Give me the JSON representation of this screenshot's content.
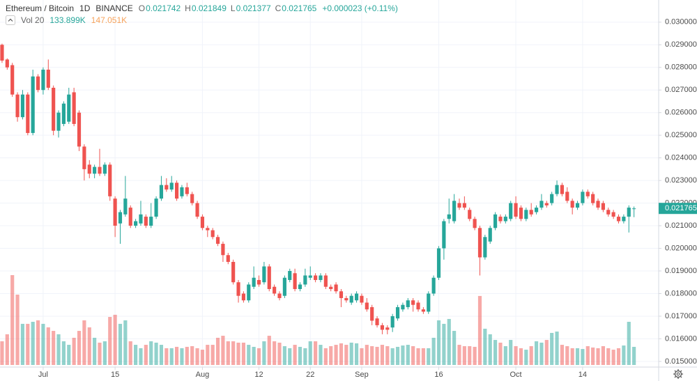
{
  "chart_data": {
    "type": "candlestick",
    "symbol": "Ethereum / Bitcoin",
    "interval": "1D",
    "exchange": "BINANCE",
    "ohlc_legend": [
      {
        "label": "O",
        "value": "0.021742"
      },
      {
        "label": "H",
        "value": "0.021849"
      },
      {
        "label": "L",
        "value": "0.021377"
      },
      {
        "label": "C",
        "value": "0.021765"
      }
    ],
    "change": "+0.000023 (+0.11%)",
    "volume": {
      "name": "Vol 20",
      "current": "133.899K",
      "ma": "147.051K",
      "values": [
        175,
        227,
        664,
        520,
        304,
        304,
        319,
        330,
        304,
        278,
        252,
        227,
        175,
        149,
        201,
        252,
        330,
        278,
        201,
        165,
        175,
        355,
        371,
        304,
        330,
        175,
        149,
        124,
        149,
        175,
        165,
        149,
        124,
        124,
        134,
        124,
        134,
        139,
        124,
        113,
        149,
        149,
        201,
        216,
        175,
        175,
        165,
        165,
        149,
        134,
        124,
        175,
        216,
        175,
        165,
        139,
        124,
        149,
        134,
        124,
        175,
        175,
        149,
        124,
        139,
        149,
        160,
        149,
        165,
        160,
        124,
        149,
        139,
        134,
        149,
        139,
        124,
        134,
        144,
        149,
        139,
        124,
        124,
        124,
        201,
        330,
        304,
        340,
        252,
        149,
        139,
        139,
        134,
        510,
        268,
        227,
        185,
        165,
        139,
        185,
        139,
        124,
        113,
        139,
        175,
        165,
        185,
        237,
        247,
        149,
        139,
        124,
        124,
        118,
        139,
        129,
        124,
        139,
        124,
        113,
        124,
        144,
        319,
        133.899
      ]
    },
    "up_color": "#26a69a",
    "down_color": "#ef5350",
    "candles": [
      [
        0.029,
        0.02905,
        0.0282,
        0.0283
      ],
      [
        0.02835,
        0.0284,
        0.0279,
        0.028
      ],
      [
        0.0281,
        0.0282,
        0.0267,
        0.0268
      ],
      [
        0.0268,
        0.0269,
        0.0256,
        0.0258
      ],
      [
        0.0258,
        0.027,
        0.0257,
        0.0268
      ],
      [
        0.0268,
        0.0269,
        0.025,
        0.0251
      ],
      [
        0.0251,
        0.0279,
        0.025,
        0.0276
      ],
      [
        0.0276,
        0.0277,
        0.0269,
        0.027
      ],
      [
        0.027,
        0.028,
        0.0268,
        0.0279
      ],
      [
        0.0279,
        0.02835,
        0.027,
        0.0271
      ],
      [
        0.0271,
        0.0272,
        0.025,
        0.0252
      ],
      [
        0.0252,
        0.0261,
        0.0249,
        0.026
      ],
      [
        0.0255,
        0.0265,
        0.0254,
        0.0264
      ],
      [
        0.0256,
        0.0271,
        0.0255,
        0.0268
      ],
      [
        0.0269,
        0.0271,
        0.0254,
        0.0255
      ],
      [
        0.026,
        0.0261,
        0.0243,
        0.0245
      ],
      [
        0.0245,
        0.0246,
        0.023,
        0.0235
      ],
      [
        0.0237,
        0.0239,
        0.0231,
        0.0233
      ],
      [
        0.0233,
        0.0237,
        0.0231,
        0.0236
      ],
      [
        0.0236,
        0.0244,
        0.0232,
        0.0233
      ],
      [
        0.0233,
        0.0238,
        0.0232,
        0.0237
      ],
      [
        0.0237,
        0.0238,
        0.0221,
        0.0223
      ],
      [
        0.0222,
        0.0223,
        0.0205,
        0.021
      ],
      [
        0.0211,
        0.0217,
        0.0202,
        0.0216
      ],
      [
        0.0215,
        0.0232,
        0.0214,
        0.0222
      ],
      [
        0.0218,
        0.0219,
        0.0209,
        0.021
      ],
      [
        0.021,
        0.0213,
        0.0209,
        0.0212
      ],
      [
        0.0211,
        0.0221,
        0.021,
        0.0215
      ],
      [
        0.0214,
        0.0215,
        0.0209,
        0.021
      ],
      [
        0.021,
        0.022,
        0.0209,
        0.0214
      ],
      [
        0.0214,
        0.0223,
        0.0213,
        0.0222
      ],
      [
        0.0222,
        0.0232,
        0.0221,
        0.0228
      ],
      [
        0.0228,
        0.0231,
        0.0225,
        0.0226
      ],
      [
        0.0226,
        0.0232,
        0.0225,
        0.0229
      ],
      [
        0.0229,
        0.023,
        0.0221,
        0.0222
      ],
      [
        0.0223,
        0.0228,
        0.0222,
        0.0227
      ],
      [
        0.0227,
        0.0229,
        0.0223,
        0.0224
      ],
      [
        0.0224,
        0.0225,
        0.0219,
        0.022
      ],
      [
        0.022,
        0.0221,
        0.0213,
        0.0214
      ],
      [
        0.0214,
        0.0215,
        0.0208,
        0.0209
      ],
      [
        0.0209,
        0.021,
        0.0205,
        0.0208
      ],
      [
        0.0208,
        0.0209,
        0.0204,
        0.0205
      ],
      [
        0.0205,
        0.0206,
        0.0201,
        0.0202
      ],
      [
        0.0202,
        0.0203,
        0.0194,
        0.0197
      ],
      [
        0.0197,
        0.0198,
        0.0193,
        0.0194
      ],
      [
        0.0194,
        0.0195,
        0.0184,
        0.0185
      ],
      [
        0.0185,
        0.0186,
        0.0176,
        0.0179
      ],
      [
        0.018,
        0.0181,
        0.0176,
        0.0177
      ],
      [
        0.0177,
        0.0185,
        0.0176,
        0.0184
      ],
      [
        0.0183,
        0.0192,
        0.0182,
        0.0187
      ],
      [
        0.0186,
        0.0188,
        0.0183,
        0.0184
      ],
      [
        0.0185,
        0.0194,
        0.0184,
        0.0192
      ],
      [
        0.0192,
        0.0193,
        0.0181,
        0.0182
      ],
      [
        0.0183,
        0.0184,
        0.0179,
        0.018
      ],
      [
        0.018,
        0.0181,
        0.0177,
        0.0178
      ],
      [
        0.0179,
        0.0188,
        0.0178,
        0.0187
      ],
      [
        0.0186,
        0.0191,
        0.0185,
        0.019
      ],
      [
        0.0189,
        0.0191,
        0.0181,
        0.0182
      ],
      [
        0.0182,
        0.0185,
        0.0181,
        0.0184
      ],
      [
        0.0184,
        0.0191,
        0.0183,
        0.0188
      ],
      [
        0.0187,
        0.0192,
        0.0186,
        0.0188
      ],
      [
        0.0188,
        0.0189,
        0.0185,
        0.0186
      ],
      [
        0.0186,
        0.0189,
        0.0185,
        0.0188
      ],
      [
        0.0188,
        0.0189,
        0.0182,
        0.0183
      ],
      [
        0.0183,
        0.0184,
        0.0181,
        0.0182
      ],
      [
        0.0184,
        0.0185,
        0.018,
        0.0181
      ],
      [
        0.0181,
        0.0182,
        0.0174,
        0.0178
      ],
      [
        0.0178,
        0.0179,
        0.0176,
        0.0177
      ],
      [
        0.0176,
        0.018,
        0.0175,
        0.0179
      ],
      [
        0.0177,
        0.0181,
        0.0176,
        0.018
      ],
      [
        0.0179,
        0.018,
        0.0175,
        0.0176
      ],
      [
        0.0176,
        0.0178,
        0.0172,
        0.0173
      ],
      [
        0.0174,
        0.0175,
        0.0166,
        0.0168
      ],
      [
        0.0169,
        0.017,
        0.0165,
        0.0166
      ],
      [
        0.0166,
        0.0167,
        0.0162,
        0.0164
      ],
      [
        0.0165,
        0.0166,
        0.0162,
        0.0164
      ],
      [
        0.0165,
        0.0171,
        0.0163,
        0.017
      ],
      [
        0.0169,
        0.0175,
        0.0168,
        0.0174
      ],
      [
        0.0173,
        0.0176,
        0.0172,
        0.0175
      ],
      [
        0.0174,
        0.0178,
        0.0173,
        0.0177
      ],
      [
        0.0177,
        0.0178,
        0.0172,
        0.0175
      ],
      [
        0.0176,
        0.0177,
        0.0172,
        0.0173
      ],
      [
        0.0173,
        0.0174,
        0.0171,
        0.0172
      ],
      [
        0.0172,
        0.0181,
        0.0171,
        0.018
      ],
      [
        0.018,
        0.0188,
        0.0179,
        0.0187
      ],
      [
        0.0187,
        0.0201,
        0.0186,
        0.02
      ],
      [
        0.02,
        0.0213,
        0.0195,
        0.0212
      ],
      [
        0.0213,
        0.0222,
        0.0211,
        0.0215
      ],
      [
        0.0212,
        0.0224,
        0.0211,
        0.0221
      ],
      [
        0.022,
        0.0222,
        0.0217,
        0.0218
      ],
      [
        0.022,
        0.0223,
        0.0217,
        0.0218
      ],
      [
        0.0217,
        0.0218,
        0.0212,
        0.0213
      ],
      [
        0.0213,
        0.0214,
        0.0208,
        0.0209
      ],
      [
        0.0209,
        0.021,
        0.0188,
        0.0196
      ],
      [
        0.0196,
        0.0206,
        0.0195,
        0.0205
      ],
      [
        0.0203,
        0.021,
        0.0202,
        0.0209
      ],
      [
        0.0209,
        0.0216,
        0.0208,
        0.0215
      ],
      [
        0.0214,
        0.0215,
        0.0211,
        0.0212
      ],
      [
        0.0212,
        0.0215,
        0.0211,
        0.0214
      ],
      [
        0.0213,
        0.0221,
        0.0212,
        0.022
      ],
      [
        0.022,
        0.0223,
        0.0213,
        0.0214
      ],
      [
        0.0218,
        0.0219,
        0.0212,
        0.0213
      ],
      [
        0.0213,
        0.0218,
        0.0212,
        0.0217
      ],
      [
        0.0217,
        0.022,
        0.0214,
        0.0215
      ],
      [
        0.0216,
        0.0219,
        0.0215,
        0.0218
      ],
      [
        0.0218,
        0.0224,
        0.0217,
        0.0221
      ],
      [
        0.022,
        0.0221,
        0.0218,
        0.0219
      ],
      [
        0.022,
        0.0225,
        0.0219,
        0.0224
      ],
      [
        0.0224,
        0.023,
        0.0223,
        0.0228
      ],
      [
        0.0228,
        0.0229,
        0.0223,
        0.0224
      ],
      [
        0.0225,
        0.0227,
        0.022,
        0.0221
      ],
      [
        0.0221,
        0.0222,
        0.0215,
        0.0218
      ],
      [
        0.0218,
        0.0221,
        0.0217,
        0.022
      ],
      [
        0.022,
        0.0226,
        0.0219,
        0.0225
      ],
      [
        0.0225,
        0.0226,
        0.0222,
        0.0223
      ],
      [
        0.0224,
        0.0225,
        0.0219,
        0.022
      ],
      [
        0.0221,
        0.0222,
        0.0217,
        0.0218
      ],
      [
        0.022,
        0.0221,
        0.0216,
        0.0217
      ],
      [
        0.0217,
        0.0218,
        0.0214,
        0.0215
      ],
      [
        0.0216,
        0.0217,
        0.0213,
        0.0214
      ],
      [
        0.0214,
        0.0215,
        0.0211,
        0.0212
      ],
      [
        0.0212,
        0.0215,
        0.0211,
        0.0214
      ],
      [
        0.0214,
        0.0219,
        0.0207,
        0.0218
      ],
      [
        0.021742,
        0.021849,
        0.021377,
        0.021765
      ]
    ],
    "last_price": {
      "value": 0.021765,
      "label": "0.021765"
    },
    "xlim": [
      -0.4,
      127.8
    ],
    "xticks": [
      {
        "value": 8,
        "label": "Jul"
      },
      {
        "value": 22,
        "label": "15"
      },
      {
        "value": 39,
        "label": "Aug"
      },
      {
        "value": 50,
        "label": "12"
      },
      {
        "value": 60,
        "label": "22"
      },
      {
        "value": 70,
        "label": "Sep"
      },
      {
        "value": 85,
        "label": "16"
      },
      {
        "value": 100,
        "label": "Oct"
      },
      {
        "value": 113,
        "label": "14"
      }
    ],
    "ylim": [
      0.01475,
      0.03098
    ],
    "yticks": [
      {
        "value": 0.015,
        "label": "0.015000"
      },
      {
        "value": 0.016,
        "label": "0.016000"
      },
      {
        "value": 0.017,
        "label": "0.017000"
      },
      {
        "value": 0.018,
        "label": "0.018000"
      },
      {
        "value": 0.019,
        "label": "0.019000"
      },
      {
        "value": 0.02,
        "label": "0.020000"
      },
      {
        "value": 0.021,
        "label": "0.021000"
      },
      {
        "value": 0.022,
        "label": "0.022000"
      },
      {
        "value": 0.023,
        "label": "0.023000"
      },
      {
        "value": 0.024,
        "label": "0.024000"
      },
      {
        "value": 0.025,
        "label": "0.025000"
      },
      {
        "value": 0.026,
        "label": "0.026000"
      },
      {
        "value": 0.027,
        "label": "0.027000"
      },
      {
        "value": 0.028,
        "label": "0.028000"
      },
      {
        "value": 0.029,
        "label": "0.029000"
      },
      {
        "value": 0.03,
        "label": "0.030000"
      }
    ],
    "grid": true
  }
}
